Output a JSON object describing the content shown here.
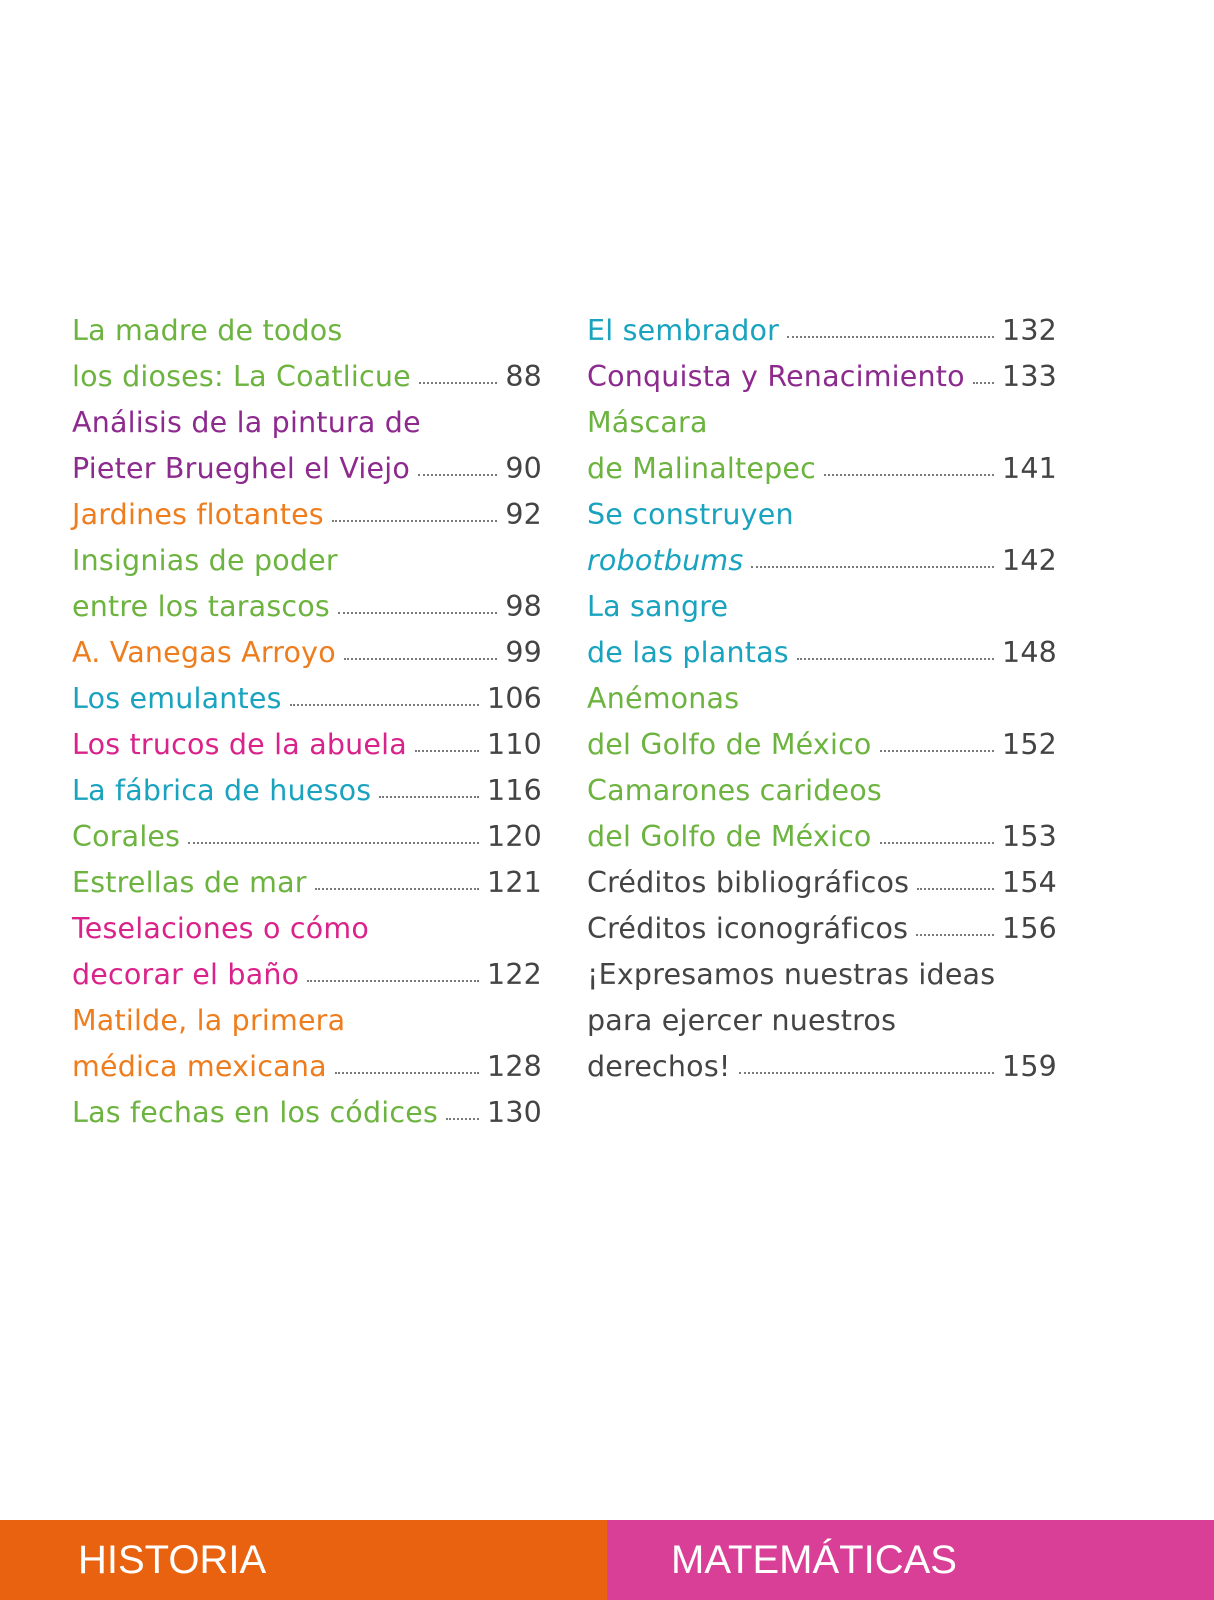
{
  "colors": {
    "green": "#6cb33f",
    "purple": "#8d2a8e",
    "orange": "#ee7d1e",
    "teal": "#1aa3bf",
    "pink": "#d9238a",
    "gray": "#444444",
    "historia_bg": "#e8620f",
    "matematicas_bg": "#d93f97"
  },
  "left_lines": [
    {
      "text": "La madre de todos",
      "page": "",
      "color": "green"
    },
    {
      "text": "los dioses: La Coatlicue",
      "page": "88",
      "color": "green"
    },
    {
      "text": "Análisis de la pintura de",
      "page": "",
      "color": "purple"
    },
    {
      "text": "Pieter Brueghel el Viejo",
      "page": "90",
      "color": "purple"
    },
    {
      "text": "Jardines flotantes",
      "page": "92",
      "color": "orange"
    },
    {
      "text": "Insignias de poder",
      "page": "",
      "color": "green"
    },
    {
      "text": "entre los tarascos",
      "page": "98",
      "color": "green"
    },
    {
      "text": "A. Vanegas Arroyo",
      "page": "99",
      "color": "orange"
    },
    {
      "text": "Los emulantes",
      "page": "106",
      "color": "teal"
    },
    {
      "text": "Los trucos de la abuela",
      "page": "110",
      "color": "pink"
    },
    {
      "text": "La fábrica de huesos",
      "page": "116",
      "color": "teal"
    },
    {
      "text": "Corales",
      "page": "120",
      "color": "green"
    },
    {
      "text": "Estrellas de mar",
      "page": "121",
      "color": "green"
    },
    {
      "text": "Teselaciones o cómo",
      "page": "",
      "color": "pink"
    },
    {
      "text": "decorar el baño",
      "page": "122",
      "color": "pink"
    },
    {
      "text": "Matilde, la primera",
      "page": "",
      "color": "orange"
    },
    {
      "text": "médica mexicana",
      "page": "128",
      "color": "orange"
    },
    {
      "text": "Las fechas en los códices",
      "page": "130",
      "color": "green"
    }
  ],
  "right_lines": [
    {
      "text": "El sembrador",
      "page": "132",
      "color": "teal"
    },
    {
      "text": "Conquista y Renacimiento",
      "page": "133",
      "color": "purple"
    },
    {
      "text": "Máscara",
      "page": "",
      "color": "green"
    },
    {
      "text": "de Malinaltepec",
      "page": "141",
      "color": "green"
    },
    {
      "text": "Se construyen",
      "page": "",
      "color": "teal"
    },
    {
      "text": "robotbums",
      "page": "142",
      "color": "teal",
      "italic": true
    },
    {
      "text": "La sangre",
      "page": "",
      "color": "teal"
    },
    {
      "text": "de las plantas",
      "page": "148",
      "color": "teal"
    },
    {
      "text": "Anémonas",
      "page": "",
      "color": "green"
    },
    {
      "text": "del Golfo de México",
      "page": "152",
      "color": "green"
    },
    {
      "text": "Camarones carideos",
      "page": "",
      "color": "green"
    },
    {
      "text": "del Golfo de México",
      "page": "153",
      "color": "green"
    },
    {
      "text": "Créditos bibliográficos",
      "page": "154",
      "color": "gray"
    },
    {
      "text": "Créditos iconográficos",
      "page": "156",
      "color": "gray"
    },
    {
      "text": "¡Expresamos nuestras ideas",
      "page": "",
      "color": "gray"
    },
    {
      "text": "para ejercer nuestros",
      "page": "",
      "color": "gray"
    },
    {
      "text": "derechos!",
      "page": "159",
      "color": "gray"
    }
  ],
  "footer": {
    "left_label": "HISTORIA",
    "right_label": "MATEMÁTICAS"
  }
}
